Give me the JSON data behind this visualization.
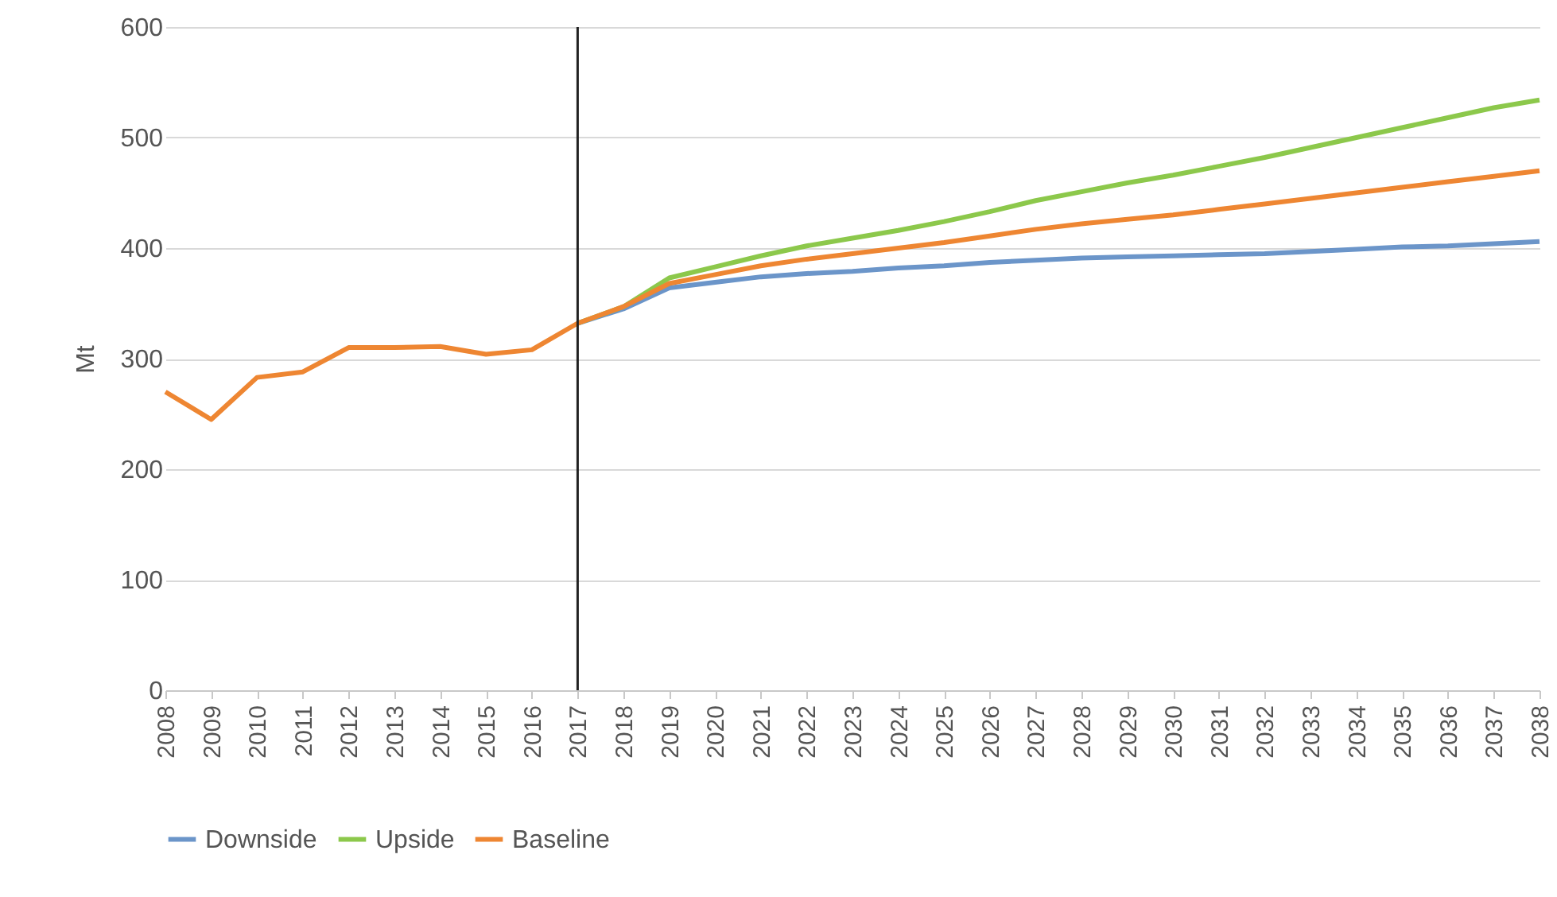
{
  "chart_data": {
    "type": "line",
    "ylabel": "Mt",
    "categories": [
      "2008",
      "2009",
      "2010",
      "2011",
      "2012",
      "2013",
      "2014",
      "2015",
      "2016",
      "2017",
      "2018",
      "2019",
      "2020",
      "2021",
      "2022",
      "2023",
      "2024",
      "2025",
      "2026",
      "2027",
      "2028",
      "2029",
      "2030",
      "2031",
      "2032",
      "2033",
      "2034",
      "2035",
      "2036",
      "2037",
      "2038"
    ],
    "series": [
      {
        "name": "Downside",
        "color": "#6b95c9",
        "values": [
          null,
          null,
          null,
          null,
          null,
          null,
          null,
          null,
          null,
          332,
          345,
          364,
          369,
          374,
          377,
          379,
          382,
          384,
          387,
          389,
          391,
          392,
          393,
          394,
          395,
          397,
          399,
          401,
          402,
          404,
          406
        ]
      },
      {
        "name": "Upside",
        "color": "#8cc84b",
        "values": [
          null,
          null,
          null,
          null,
          null,
          null,
          null,
          null,
          null,
          332,
          347,
          373,
          383,
          393,
          402,
          409,
          416,
          424,
          433,
          443,
          451,
          459,
          466,
          474,
          482,
          491,
          500,
          509,
          518,
          527,
          534
        ]
      },
      {
        "name": "Baseline",
        "color": "#ee8632",
        "values": [
          270,
          245,
          283,
          288,
          310,
          310,
          311,
          304,
          308,
          332,
          347,
          368,
          376,
          384,
          390,
          395,
          400,
          405,
          411,
          417,
          422,
          426,
          430,
          435,
          440,
          445,
          450,
          455,
          460,
          465,
          470
        ]
      }
    ],
    "ylim": [
      0,
      600
    ],
    "yticks": [
      0,
      100,
      200,
      300,
      400,
      500,
      600
    ],
    "grid": "y",
    "legend": "bottom",
    "line_style": "solid",
    "marker": "none",
    "ref_lines": [
      {
        "axis": "x",
        "value": "2017",
        "color": "#222222"
      }
    ]
  }
}
